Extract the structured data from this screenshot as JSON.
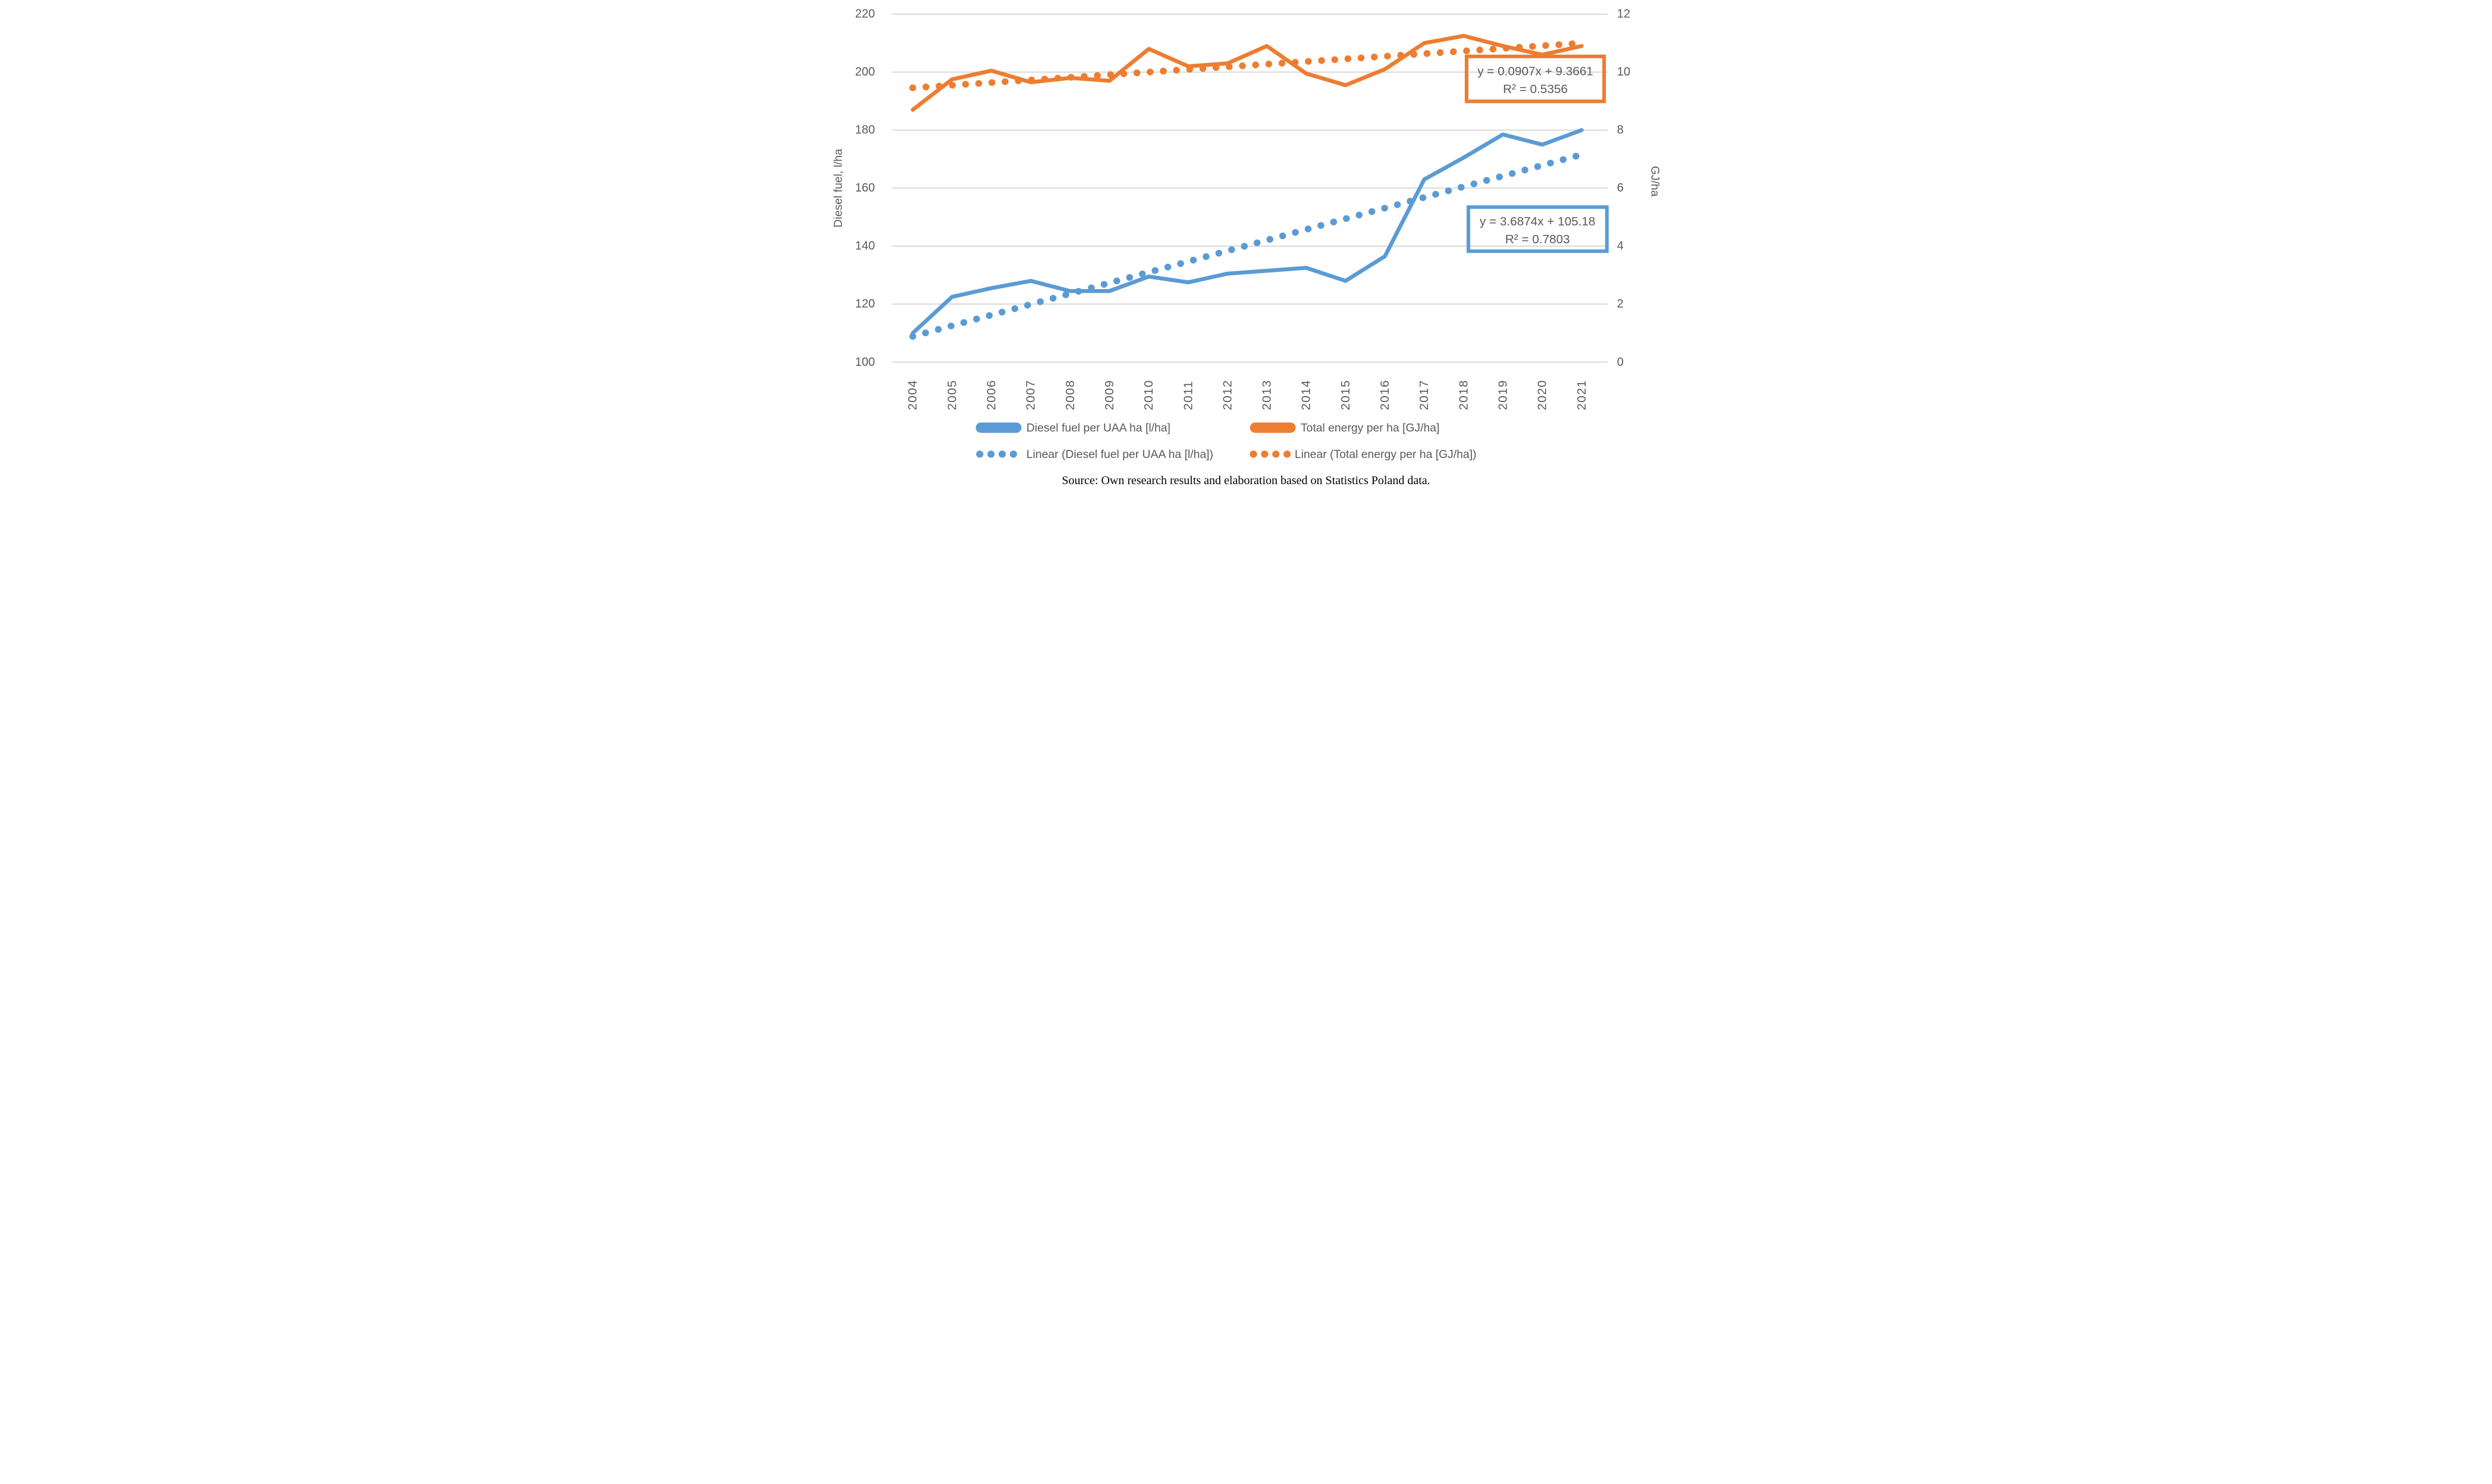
{
  "figure": {
    "source_caption": "Source: Own research results and elaboration based on Statistics Poland data."
  },
  "axes": {
    "left_title": "Diesel fuel, l/ha",
    "right_title": "GJ/ha",
    "left_ticks": [
      220,
      200,
      180,
      160,
      140,
      120,
      100
    ],
    "right_ticks": [
      12,
      10,
      8,
      6,
      4,
      2,
      0
    ]
  },
  "legend": {
    "items": [
      {
        "label": "Diesel fuel per UAA ha [l/ha]",
        "marker": "solid-line",
        "color": "#5B9BD5"
      },
      {
        "label": "Total energy per ha [GJ/ha]",
        "marker": "solid-line",
        "color": "#ED7D31"
      },
      {
        "label": "Linear (Diesel fuel per UAA ha [l/ha])",
        "marker": "dotted-line",
        "color": "#5B9BD5"
      },
      {
        "label": "Linear (Total energy per ha [GJ/ha])",
        "marker": "dotted-line",
        "color": "#ED7D31"
      }
    ]
  },
  "annotations": {
    "energy_trend": {
      "line1": "y = 0.0907x + 9.3661",
      "line2": "R² = 0.5356"
    },
    "diesel_trend": {
      "line1": "y = 3.6874x + 105.18",
      "line2": "R² = 0.7803"
    }
  },
  "colors": {
    "diesel": "#5B9BD5",
    "energy": "#ED7D31",
    "grid": "#D9D9D9",
    "tick_text": "#595959"
  },
  "chart_data": {
    "type": "line",
    "categories": [
      "2004",
      "2005",
      "2006",
      "2007",
      "2008",
      "2009",
      "2010",
      "2011",
      "2012",
      "2013",
      "2014",
      "2015",
      "2016",
      "2017",
      "2018",
      "2019",
      "2020",
      "2021"
    ],
    "series": [
      {
        "name": "Diesel fuel per UAA ha [l/ha]",
        "axis": "left",
        "style": "solid",
        "color": "#5B9BD5",
        "values": [
          110,
          122.5,
          125.5,
          128,
          124.5,
          124.5,
          129.5,
          127.5,
          130.5,
          131.5,
          132.5,
          128,
          136.5,
          163,
          170.5,
          178.5,
          175,
          180
        ]
      },
      {
        "name": "Total energy per ha [GJ/ha]",
        "axis": "right",
        "style": "solid",
        "color": "#ED7D31",
        "values": [
          8.7,
          9.75,
          10.05,
          9.65,
          9.8,
          9.7,
          10.8,
          10.2,
          10.3,
          10.9,
          9.95,
          9.55,
          10.1,
          11.0,
          11.25,
          10.9,
          10.6,
          10.9
        ]
      },
      {
        "name": "Linear (Diesel fuel per UAA ha [l/ha])",
        "axis": "left",
        "style": "dotted",
        "color": "#5B9BD5",
        "trend": {
          "slope": 3.6874,
          "intercept": 105.18,
          "x_range": [
            1,
            18
          ]
        }
      },
      {
        "name": "Linear (Total energy per ha [GJ/ha])",
        "axis": "right",
        "style": "dotted",
        "color": "#ED7D31",
        "trend": {
          "slope": 0.0907,
          "intercept": 9.3661,
          "x_range": [
            1,
            18
          ]
        }
      }
    ],
    "left_ylim": [
      100,
      220
    ],
    "right_ylim": [
      0,
      12
    ],
    "xlabel": "",
    "ylabel_left": "Diesel fuel, l/ha",
    "ylabel_right": "GJ/ha",
    "grid": true,
    "legend_position": "bottom"
  }
}
